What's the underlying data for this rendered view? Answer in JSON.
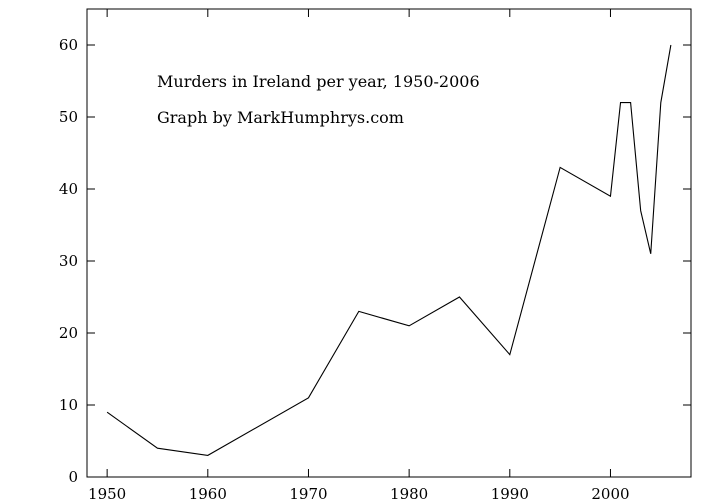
{
  "chart_data": {
    "type": "line",
    "title": "",
    "xlabel": "",
    "ylabel": "",
    "xlim": [
      1948,
      2008
    ],
    "ylim": [
      0,
      65
    ],
    "grid": false,
    "legend": "none",
    "x_ticks": [
      1950,
      1960,
      1970,
      1980,
      1990,
      2000
    ],
    "y_ticks": [
      0,
      10,
      20,
      30,
      40,
      50,
      60
    ],
    "annotations": [
      "Murders in Ireland per year, 1950-2006",
      "Graph by MarkHumphrys.com"
    ],
    "series": [
      {
        "color": "#000000",
        "x": [
          1950,
          1955,
          1960,
          1970,
          1975,
          1980,
          1985,
          1990,
          1995,
          2000,
          2001,
          2002,
          2003,
          2004,
          2005,
          2006
        ],
        "y": [
          9,
          4,
          3,
          11,
          23,
          21,
          25,
          17,
          43,
          39,
          52,
          52,
          37,
          31,
          52,
          60
        ]
      }
    ]
  }
}
